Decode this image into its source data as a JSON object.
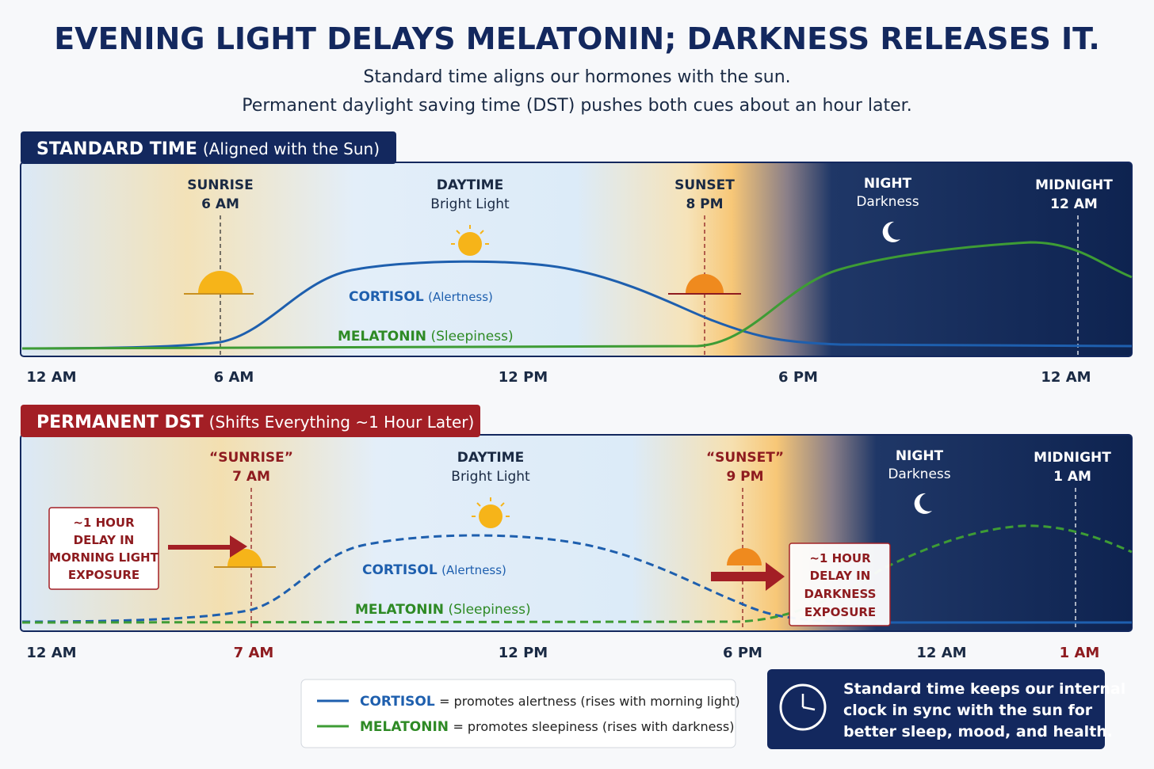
{
  "header": {
    "title": "EVENING LIGHT DELAYS MELATONIN; DARKNESS RELEASES IT.",
    "subtitle": [
      "Standard time aligns our hormones with the sun.",
      "Permanent daylight saving time (DST) pushes both cues about an hour later."
    ]
  },
  "panels": [
    {
      "tab": {
        "bold": "STANDARD TIME",
        "rest": "(Aligned with the Sun)"
      },
      "markers": [
        [
          "SUNRISE",
          "6 AM"
        ],
        [
          "DAYTIME",
          "Bright Light"
        ],
        [
          "SUNSET",
          "8 PM"
        ],
        [
          "NIGHT",
          "Darkness"
        ],
        [
          "MIDNIGHT",
          "12 AM"
        ]
      ],
      "cortisol": {
        "name": "CORTISOL",
        "note": "(Alertness)"
      },
      "melatonin": {
        "name": "MELATONIN",
        "note": "(Sleepiness)"
      },
      "axis": [
        "12 AM",
        "6 AM",
        "12 PM",
        "6 PM",
        "12 AM"
      ]
    },
    {
      "tab": {
        "bold": "PERMANENT DST",
        "rest": "(Shifts Everything ~1 Hour Later)"
      },
      "markers": [
        [
          "“SUNRISE”",
          "7 AM"
        ],
        [
          "DAYTIME",
          "Bright Light"
        ],
        [
          "“SUNSET”",
          "9 PM"
        ],
        [
          "NIGHT",
          "Darkness"
        ],
        [
          "MIDNIGHT",
          "1 AM"
        ]
      ],
      "cortisol": {
        "name": "CORTISOL",
        "note": "(Alertness)"
      },
      "melatonin": {
        "name": "MELATONIN",
        "note": "(Sleepiness)"
      },
      "axis": [
        "12 AM",
        "7 AM",
        "12 PM",
        "6 PM",
        "12 AM",
        "1 AM"
      ],
      "callouts": [
        [
          "~1 HOUR",
          "DELAY IN",
          "MORNING LIGHT",
          "EXPOSURE"
        ],
        [
          "~1 HOUR",
          "DELAY IN",
          "DARKNESS",
          "EXPOSURE"
        ]
      ]
    }
  ],
  "legend": [
    {
      "name": "CORTISOL",
      "text": "= promotes alertness (rises with morning light)"
    },
    {
      "name": "MELATONIN",
      "text": "= promotes sleepiness (rises with darkness)"
    }
  ],
  "note": [
    "Standard time keeps our internal",
    "clock in sync with the sun for",
    "better sleep, mood, and health."
  ]
}
